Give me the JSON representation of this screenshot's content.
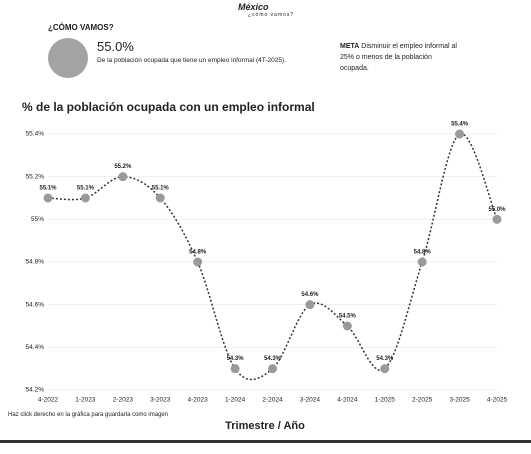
{
  "header": {
    "logo_name": "México",
    "logo_tagline": "¿cómo vamos?",
    "section": "¿CÓMO VAMOS?",
    "headline_value": "55.0%",
    "headline_text": "De la población ocupada que tiene un empleo informal (4T-2025).",
    "meta_label": "META",
    "meta_text": "Disminuir el empleo informal al 25% o menos de la población ocupada."
  },
  "chart_data": {
    "type": "line",
    "title": "% de la población ocupada con un empleo informal",
    "x_label": "Trimestre / Año",
    "categories": [
      "4-2022",
      "1-2023",
      "2-2023",
      "3-2023",
      "4-2023",
      "1-2024",
      "2-2024",
      "3-2024",
      "4-2024",
      "1-2025",
      "2-2025",
      "3-2025",
      "4-2025"
    ],
    "values": [
      55.1,
      55.1,
      55.2,
      55.1,
      54.8,
      54.3,
      54.3,
      54.6,
      54.5,
      54.3,
      54.8,
      55.4,
      55.0
    ],
    "value_labels": [
      "55.1%",
      "55.1%",
      "55.2%",
      "55.1%",
      "54.8%",
      "54.3%",
      "54.3%",
      "54.6%",
      "54.5%",
      "54.3%",
      "54.8%",
      "55.4%",
      "55.0%"
    ],
    "color": "#333333",
    "marker_color": "#9a9a9a",
    "ylim": [
      54.2,
      55.4
    ],
    "yticks": [
      {
        "value": 54.2,
        "label": "54.2%"
      },
      {
        "value": 54.4,
        "label": "54.4%"
      },
      {
        "value": 54.6,
        "label": "54.6%"
      },
      {
        "value": 54.8,
        "label": "54.8%"
      },
      {
        "value": 55,
        "label": "55%"
      },
      {
        "value": 55.2,
        "label": "55.2%"
      },
      {
        "value": 55.4,
        "label": "55.4%"
      }
    ],
    "grid": true
  },
  "footer": {
    "note": "Haz click derecho en la gráfica para guardarla como imagen"
  }
}
